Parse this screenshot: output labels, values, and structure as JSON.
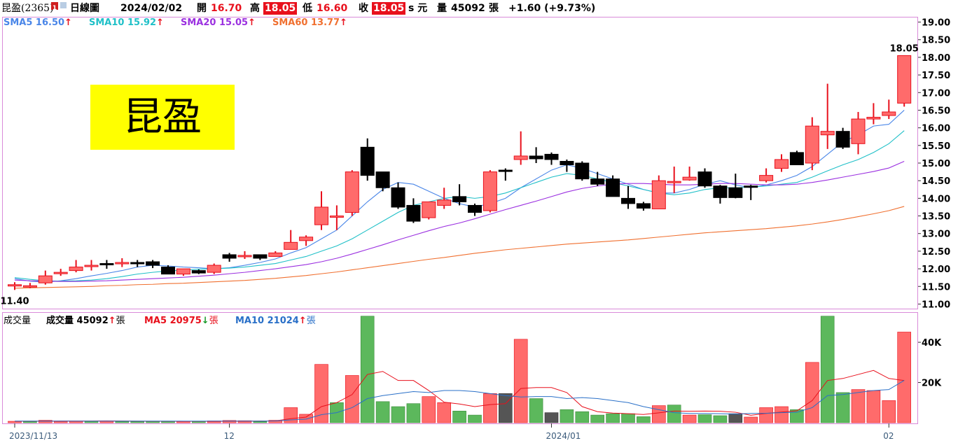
{
  "header": {
    "stock_name": "昆盈(2365)",
    "badge": "1",
    "period": "日線圖",
    "date": "2024/02/02",
    "open_label": "開",
    "open_value": "16.70",
    "high_label": "高",
    "high_value": "18.05",
    "low_label": "低",
    "low_value": "16.60",
    "close_label": "收",
    "close_value": "18.05",
    "currency": "s 元",
    "volume_label": "量",
    "volume_value": "45092",
    "volume_unit": "張",
    "change": "+1.60 (+9.73%)"
  },
  "legend": {
    "sma5": {
      "label": "SMA5 16.50",
      "arrow": "↑",
      "color": "#4a86e8"
    },
    "sma10": {
      "label": "SMA10 15.92",
      "arrow": "↑",
      "color": "#20c0c8"
    },
    "sma20": {
      "label": "SMA20 15.05",
      "arrow": "↑",
      "color": "#9b30e0"
    },
    "sma60": {
      "label": "SMA60 13.77",
      "arrow": "↑",
      "color": "#f07030"
    }
  },
  "volume_legend": {
    "title": "成交量",
    "vol_label": "成交量 45092",
    "vol_arrow": "↑",
    "vol_unit": "張",
    "ma5_label": "MA5 20975",
    "ma5_arrow": "↓",
    "ma5_unit": "張",
    "ma10_label": "MA10 21024",
    "ma10_arrow": "↑",
    "ma10_unit": "張"
  },
  "logo_text": "昆盈",
  "colors": {
    "up": "#ff6b6b",
    "up_border": "#e8101c",
    "down": "#000000",
    "vol_up": "#ff6b6b",
    "vol_down": "#5cb85c",
    "vol_flat": "#555555",
    "panel_border": "#d98ad9",
    "sma5": "#4a86e8",
    "sma10": "#20c0c8",
    "sma20": "#9b30e0",
    "sma60": "#f07030",
    "vol_ma5": "#e8101c",
    "vol_ma10": "#2a70c8"
  },
  "chart_data": [
    {
      "type": "candlestick",
      "title": "",
      "y_ticks": [
        "19.00",
        "18.50",
        "18.00",
        "17.50",
        "17.00",
        "16.50",
        "16.00",
        "15.50",
        "15.00",
        "14.50",
        "14.00",
        "13.50",
        "13.00",
        "12.50",
        "12.00",
        "11.50",
        "11.00"
      ],
      "ylim": [
        10.85,
        19.15
      ],
      "x_ticks": [
        {
          "label": "2023/11/13",
          "index": 0
        },
        {
          "label": "12",
          "index": 14
        },
        {
          "label": "2024/01",
          "index": 35
        },
        {
          "label": "02",
          "index": 57
        }
      ],
      "annotations": [
        {
          "text": "11.40",
          "index": 0,
          "value": 11.4
        },
        {
          "text": "18.05",
          "index": 58,
          "value": 18.05
        }
      ],
      "candles": [
        {
          "o": 11.55,
          "h": 11.62,
          "l": 11.4,
          "c": 11.55
        },
        {
          "o": 11.52,
          "h": 11.6,
          "l": 11.45,
          "c": 11.52
        },
        {
          "o": 11.6,
          "h": 11.95,
          "l": 11.55,
          "c": 11.8
        },
        {
          "o": 11.9,
          "h": 12.0,
          "l": 11.8,
          "c": 11.9
        },
        {
          "o": 11.95,
          "h": 12.25,
          "l": 11.9,
          "c": 12.05
        },
        {
          "o": 12.1,
          "h": 12.25,
          "l": 11.95,
          "c": 12.1
        },
        {
          "o": 12.15,
          "h": 12.25,
          "l": 12.0,
          "c": 12.12
        },
        {
          "o": 12.18,
          "h": 12.3,
          "l": 12.05,
          "c": 12.18
        },
        {
          "o": 12.18,
          "h": 12.25,
          "l": 12.05,
          "c": 12.15
        },
        {
          "o": 12.2,
          "h": 12.25,
          "l": 12.02,
          "c": 12.1
        },
        {
          "o": 12.05,
          "h": 12.1,
          "l": 11.85,
          "c": 11.85
        },
        {
          "o": 11.85,
          "h": 12.0,
          "l": 11.8,
          "c": 12.0
        },
        {
          "o": 11.95,
          "h": 11.98,
          "l": 11.85,
          "c": 11.88
        },
        {
          "o": 11.9,
          "h": 12.15,
          "l": 11.85,
          "c": 12.1
        },
        {
          "o": 12.4,
          "h": 12.45,
          "l": 12.2,
          "c": 12.3
        },
        {
          "o": 12.38,
          "h": 12.5,
          "l": 12.28,
          "c": 12.38
        },
        {
          "o": 12.4,
          "h": 12.4,
          "l": 12.25,
          "c": 12.3
        },
        {
          "o": 12.35,
          "h": 12.5,
          "l": 12.35,
          "c": 12.45
        },
        {
          "o": 12.55,
          "h": 13.1,
          "l": 12.55,
          "c": 12.75
        },
        {
          "o": 12.8,
          "h": 12.95,
          "l": 12.65,
          "c": 12.9
        },
        {
          "o": 13.25,
          "h": 14.2,
          "l": 13.1,
          "c": 13.75
        },
        {
          "o": 13.5,
          "h": 13.8,
          "l": 13.1,
          "c": 13.5
        },
        {
          "o": 13.6,
          "h": 14.8,
          "l": 13.5,
          "c": 14.75
        },
        {
          "o": 15.45,
          "h": 15.7,
          "l": 14.5,
          "c": 14.65
        },
        {
          "o": 14.75,
          "h": 14.75,
          "l": 14.2,
          "c": 14.3
        },
        {
          "o": 14.3,
          "h": 14.45,
          "l": 13.7,
          "c": 13.75
        },
        {
          "o": 13.8,
          "h": 14.0,
          "l": 13.3,
          "c": 13.35
        },
        {
          "o": 13.45,
          "h": 13.9,
          "l": 13.4,
          "c": 13.9
        },
        {
          "o": 13.8,
          "h": 14.3,
          "l": 13.7,
          "c": 13.95
        },
        {
          "o": 14.05,
          "h": 14.4,
          "l": 13.8,
          "c": 13.9
        },
        {
          "o": 13.8,
          "h": 13.85,
          "l": 13.5,
          "c": 13.6
        },
        {
          "o": 13.65,
          "h": 14.8,
          "l": 13.6,
          "c": 14.75
        },
        {
          "o": 14.8,
          "h": 14.85,
          "l": 14.5,
          "c": 14.78
        },
        {
          "o": 15.1,
          "h": 15.9,
          "l": 14.95,
          "c": 15.2
        },
        {
          "o": 15.2,
          "h": 15.45,
          "l": 15.0,
          "c": 15.12
        },
        {
          "o": 15.25,
          "h": 15.3,
          "l": 14.95,
          "c": 15.1
        },
        {
          "o": 15.05,
          "h": 15.1,
          "l": 14.75,
          "c": 14.95
        },
        {
          "o": 15.0,
          "h": 15.05,
          "l": 14.5,
          "c": 14.55
        },
        {
          "o": 14.55,
          "h": 14.75,
          "l": 14.35,
          "c": 14.4
        },
        {
          "o": 14.55,
          "h": 14.65,
          "l": 14.05,
          "c": 14.05
        },
        {
          "o": 14.0,
          "h": 14.35,
          "l": 13.7,
          "c": 13.85
        },
        {
          "o": 13.85,
          "h": 13.9,
          "l": 13.65,
          "c": 13.72
        },
        {
          "o": 13.7,
          "h": 14.65,
          "l": 13.7,
          "c": 14.5
        },
        {
          "o": 14.48,
          "h": 14.9,
          "l": 14.15,
          "c": 14.48
        },
        {
          "o": 14.52,
          "h": 14.9,
          "l": 14.5,
          "c": 14.6
        },
        {
          "o": 14.75,
          "h": 14.85,
          "l": 14.3,
          "c": 14.35
        },
        {
          "o": 14.35,
          "h": 14.38,
          "l": 13.85,
          "c": 14.02
        },
        {
          "o": 14.3,
          "h": 14.7,
          "l": 14.0,
          "c": 14.02
        },
        {
          "o": 14.35,
          "h": 14.38,
          "l": 13.95,
          "c": 14.32
        },
        {
          "o": 14.5,
          "h": 14.85,
          "l": 14.45,
          "c": 14.65
        },
        {
          "o": 14.85,
          "h": 15.25,
          "l": 14.75,
          "c": 15.1
        },
        {
          "o": 15.3,
          "h": 15.35,
          "l": 14.95,
          "c": 14.95
        },
        {
          "o": 15.0,
          "h": 16.3,
          "l": 14.8,
          "c": 16.05
        },
        {
          "o": 15.8,
          "h": 17.25,
          "l": 15.4,
          "c": 15.9
        },
        {
          "o": 15.9,
          "h": 16.0,
          "l": 15.4,
          "c": 15.45
        },
        {
          "o": 15.55,
          "h": 16.45,
          "l": 15.25,
          "c": 16.25
        },
        {
          "o": 16.25,
          "h": 16.7,
          "l": 16.1,
          "c": 16.3
        },
        {
          "o": 16.35,
          "h": 16.8,
          "l": 16.25,
          "c": 16.45
        },
        {
          "o": 16.7,
          "h": 18.05,
          "l": 16.6,
          "c": 18.05
        }
      ],
      "sma": {
        "sma5": [
          11.72,
          11.65,
          11.62,
          11.66,
          11.72,
          11.8,
          11.87,
          11.95,
          12.05,
          12.1,
          12.08,
          12.05,
          12.03,
          12.0,
          12.03,
          12.1,
          12.18,
          12.28,
          12.45,
          12.6,
          12.85,
          13.1,
          13.5,
          13.9,
          14.25,
          14.45,
          14.4,
          14.2,
          14.0,
          13.85,
          13.75,
          13.85,
          14.0,
          14.3,
          14.55,
          14.8,
          14.95,
          14.85,
          14.7,
          14.55,
          14.4,
          14.25,
          14.15,
          14.15,
          14.25,
          14.4,
          14.5,
          14.38,
          14.3,
          14.38,
          14.5,
          14.65,
          14.9,
          15.25,
          15.6,
          15.8,
          16.05,
          16.1,
          16.5
        ],
        "sma10": [
          11.75,
          11.7,
          11.66,
          11.65,
          11.66,
          11.68,
          11.72,
          11.78,
          11.85,
          11.9,
          11.94,
          11.96,
          11.99,
          12.0,
          12.02,
          12.05,
          12.1,
          12.15,
          12.25,
          12.35,
          12.5,
          12.65,
          12.85,
          13.1,
          13.35,
          13.6,
          13.8,
          13.9,
          14.0,
          14.05,
          14.0,
          14.05,
          14.15,
          14.3,
          14.45,
          14.6,
          14.7,
          14.65,
          14.55,
          14.45,
          14.35,
          14.25,
          14.15,
          14.1,
          14.15,
          14.25,
          14.3,
          14.3,
          14.32,
          14.35,
          14.4,
          14.45,
          14.6,
          14.78,
          14.95,
          15.1,
          15.3,
          15.55,
          15.92
        ],
        "sma20": [
          11.68,
          11.66,
          11.65,
          11.64,
          11.64,
          11.65,
          11.66,
          11.68,
          11.7,
          11.72,
          11.74,
          11.76,
          11.79,
          11.82,
          11.86,
          11.9,
          11.95,
          12.0,
          12.06,
          12.12,
          12.2,
          12.3,
          12.42,
          12.55,
          12.68,
          12.82,
          12.95,
          13.08,
          13.2,
          13.3,
          13.42,
          13.55,
          13.68,
          13.8,
          13.92,
          14.05,
          14.18,
          14.28,
          14.35,
          14.4,
          14.42,
          14.42,
          14.4,
          14.38,
          14.38,
          14.4,
          14.42,
          14.42,
          14.4,
          14.38,
          14.38,
          14.4,
          14.45,
          14.52,
          14.6,
          14.68,
          14.76,
          14.86,
          15.05
        ],
        "sma60": [
          11.45,
          11.46,
          11.47,
          11.48,
          11.49,
          11.5,
          11.52,
          11.53,
          11.55,
          11.56,
          11.58,
          11.59,
          11.61,
          11.63,
          11.65,
          11.67,
          11.7,
          11.73,
          11.77,
          11.81,
          11.86,
          11.91,
          11.97,
          12.03,
          12.09,
          12.15,
          12.21,
          12.27,
          12.32,
          12.38,
          12.44,
          12.49,
          12.54,
          12.58,
          12.62,
          12.66,
          12.7,
          12.73,
          12.76,
          12.79,
          12.82,
          12.86,
          12.9,
          12.94,
          12.98,
          13.02,
          13.05,
          13.08,
          13.11,
          13.14,
          13.18,
          13.22,
          13.27,
          13.33,
          13.4,
          13.48,
          13.56,
          13.65,
          13.77
        ]
      }
    },
    {
      "type": "bar",
      "title": "成交量",
      "y_ticks": [
        "40K",
        "20K"
      ],
      "ylim": [
        0,
        55000
      ],
      "volumes": [
        {
          "v": 700,
          "c": "up"
        },
        {
          "v": 600,
          "c": "down"
        },
        {
          "v": 1200,
          "c": "up"
        },
        {
          "v": 700,
          "c": "up"
        },
        {
          "v": 900,
          "c": "up"
        },
        {
          "v": 800,
          "c": "down"
        },
        {
          "v": 800,
          "c": "up"
        },
        {
          "v": 700,
          "c": "down"
        },
        {
          "v": 600,
          "c": "down"
        },
        {
          "v": 700,
          "c": "down"
        },
        {
          "v": 700,
          "c": "down"
        },
        {
          "v": 600,
          "c": "up"
        },
        {
          "v": 600,
          "c": "down"
        },
        {
          "v": 900,
          "c": "up"
        },
        {
          "v": 1100,
          "c": "up"
        },
        {
          "v": 1000,
          "c": "up"
        },
        {
          "v": 600,
          "c": "down"
        },
        {
          "v": 1200,
          "c": "up"
        },
        {
          "v": 7500,
          "c": "up"
        },
        {
          "v": 4200,
          "c": "up"
        },
        {
          "v": 29000,
          "c": "up"
        },
        {
          "v": 10000,
          "c": "down"
        },
        {
          "v": 23500,
          "c": "up"
        },
        {
          "v": 53000,
          "c": "down"
        },
        {
          "v": 10500,
          "c": "down"
        },
        {
          "v": 8000,
          "c": "down"
        },
        {
          "v": 9500,
          "c": "down"
        },
        {
          "v": 13000,
          "c": "up"
        },
        {
          "v": 10000,
          "c": "up"
        },
        {
          "v": 5800,
          "c": "down"
        },
        {
          "v": 3800,
          "c": "down"
        },
        {
          "v": 14500,
          "c": "up"
        },
        {
          "v": 14500,
          "c": "flat"
        },
        {
          "v": 41500,
          "c": "up"
        },
        {
          "v": 12000,
          "c": "down"
        },
        {
          "v": 5000,
          "c": "flat"
        },
        {
          "v": 6500,
          "c": "down"
        },
        {
          "v": 5500,
          "c": "down"
        },
        {
          "v": 3800,
          "c": "down"
        },
        {
          "v": 4500,
          "c": "down"
        },
        {
          "v": 4500,
          "c": "down"
        },
        {
          "v": 3000,
          "c": "down"
        },
        {
          "v": 8500,
          "c": "up"
        },
        {
          "v": 8800,
          "c": "down"
        },
        {
          "v": 3800,
          "c": "up"
        },
        {
          "v": 4000,
          "c": "down"
        },
        {
          "v": 3500,
          "c": "down"
        },
        {
          "v": 4500,
          "c": "flat"
        },
        {
          "v": 2800,
          "c": "up"
        },
        {
          "v": 7500,
          "c": "up"
        },
        {
          "v": 8000,
          "c": "up"
        },
        {
          "v": 6500,
          "c": "down"
        },
        {
          "v": 30000,
          "c": "up"
        },
        {
          "v": 53000,
          "c": "down"
        },
        {
          "v": 15000,
          "c": "down"
        },
        {
          "v": 16500,
          "c": "up"
        },
        {
          "v": 16000,
          "c": "up"
        },
        {
          "v": 11000,
          "c": "up"
        },
        {
          "v": 45092,
          "c": "up"
        }
      ],
      "ma5": [
        800,
        800,
        800,
        850,
        850,
        850,
        900,
        850,
        800,
        750,
        750,
        700,
        700,
        700,
        800,
        800,
        850,
        900,
        2000,
        2800,
        8000,
        10000,
        14000,
        24000,
        25500,
        21000,
        21000,
        16000,
        10200,
        9300,
        8000,
        9000,
        9500,
        17000,
        17500,
        17500,
        15000,
        8000,
        5500,
        4800,
        4500,
        4100,
        4900,
        5800,
        5700,
        5800,
        5700,
        5200,
        3700,
        4600,
        5300,
        5900,
        11000,
        21000,
        22000,
        24000,
        26000,
        22000,
        20975
      ],
      "ma10": [
        800,
        800,
        800,
        800,
        800,
        800,
        800,
        800,
        800,
        800,
        800,
        800,
        800,
        800,
        800,
        800,
        800,
        850,
        1400,
        1800,
        4000,
        5000,
        7500,
        12000,
        13500,
        14500,
        15500,
        15000,
        16000,
        16000,
        15500,
        14500,
        13500,
        12800,
        13000,
        13000,
        12000,
        12500,
        12000,
        11000,
        10000,
        8000,
        6500,
        5000,
        4600,
        4600,
        4500,
        4300,
        4600,
        4700,
        5000,
        5200,
        7500,
        13500,
        14000,
        15000,
        16000,
        16500,
        21024
      ]
    }
  ]
}
